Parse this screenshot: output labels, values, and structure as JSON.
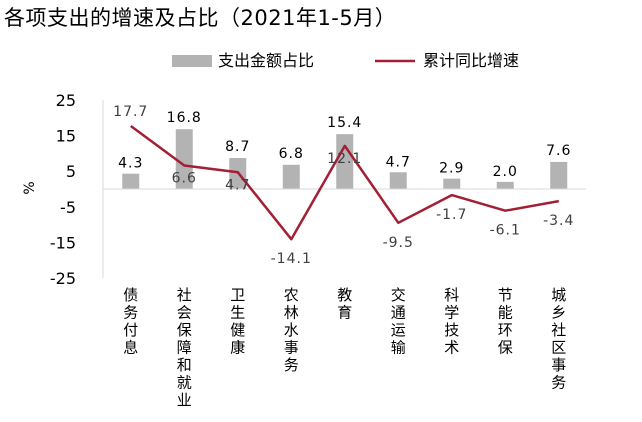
{
  "title": "各项支出的增速及占比（2021年1-5月）",
  "chart_data": {
    "type": "bar",
    "title": "各项支出的增速及占比（2021年1-5月）",
    "ylabel": "%",
    "ylim": [
      -25,
      25
    ],
    "yticks": [
      25,
      15,
      5,
      -5,
      -15,
      -25
    ],
    "categories": [
      "债务付息",
      "社会保障和就业",
      "卫生健康",
      "农林水事务",
      "教育",
      "交通运输",
      "科学技术",
      "节能环保",
      "城乡社区事务"
    ],
    "series": [
      {
        "name": "支出金额占比",
        "type": "bar",
        "color": "#b3b3b3",
        "values": [
          4.3,
          16.8,
          8.7,
          6.8,
          15.4,
          4.7,
          2.9,
          2.0,
          7.6
        ]
      },
      {
        "name": "累计同比增速",
        "type": "line",
        "color": "#a31f34",
        "values": [
          17.7,
          6.6,
          4.7,
          -14.1,
          12.1,
          -9.5,
          -1.7,
          -6.1,
          -3.4
        ]
      }
    ],
    "legend_position": "top",
    "grid": false
  }
}
